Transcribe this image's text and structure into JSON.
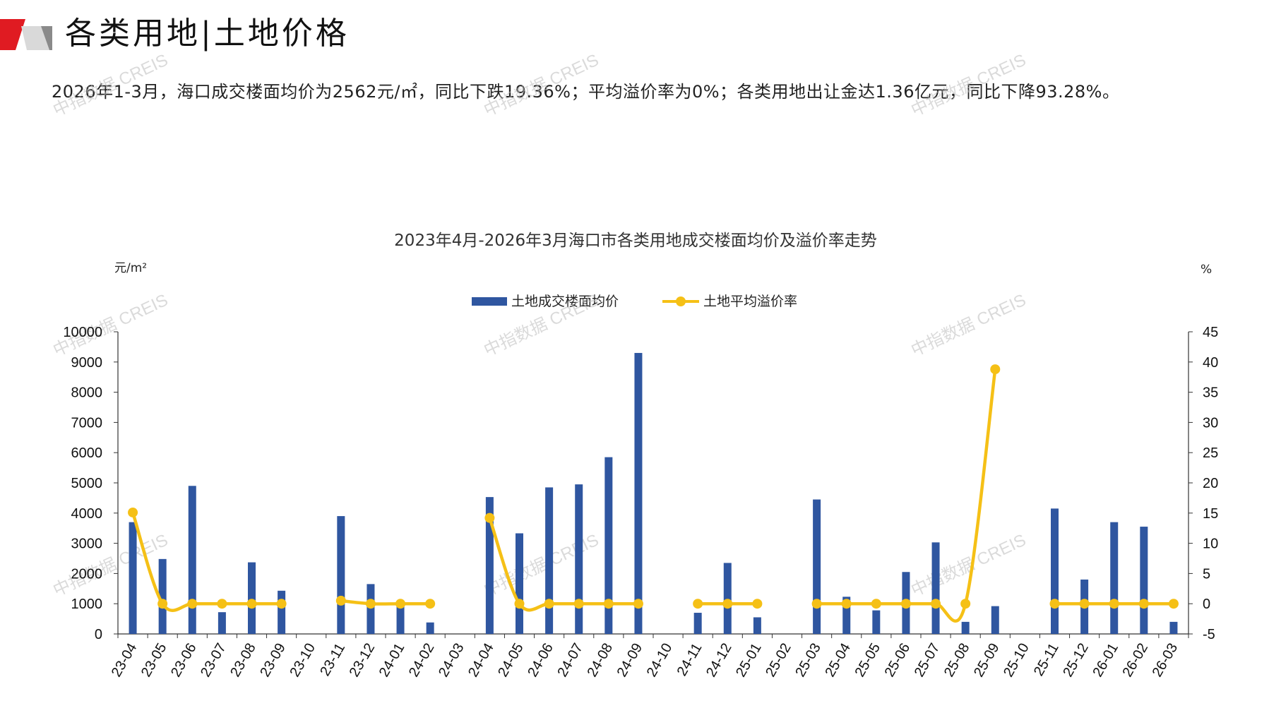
{
  "header": {
    "title": "各类用地|土地价格"
  },
  "summary": "2026年1-3月，海口成交楼面均价为2562元/㎡，同比下跌19.36%；平均溢价率为0%；各类用地出让金达1.36亿元，同比下降93.28%。",
  "watermark": "中指数据 CREIS",
  "colors": {
    "bar": "#2f56a0",
    "line": "#f5c016",
    "logo_red": "#e01b22",
    "logo_gray": "#8a8a8a"
  },
  "chart_data": {
    "type": "bar+line",
    "title": "2023年4月-2026年3月海口市各类用地成交楼面均价及溢价率走势",
    "y_left_unit": "元/m²",
    "y_right_unit": "%",
    "y_left_ticks": [
      "0",
      "1000",
      "2000",
      "3000",
      "4000",
      "5000",
      "6000",
      "7000",
      "8000",
      "9000",
      "10000"
    ],
    "y_right_ticks": [
      "-5",
      "0",
      "5",
      "10",
      "15",
      "20",
      "25",
      "30",
      "35",
      "40",
      "45"
    ],
    "ylim_left": [
      0,
      10000
    ],
    "ylim_right": [
      -5,
      45
    ],
    "legend_position": "top-center",
    "categories": [
      "23-04",
      "23-05",
      "23-06",
      "23-07",
      "23-08",
      "23-09",
      "23-10",
      "23-11",
      "23-12",
      "24-01",
      "24-02",
      "24-03",
      "24-04",
      "24-05",
      "24-06",
      "24-07",
      "24-08",
      "24-09",
      "24-10",
      "24-11",
      "24-12",
      "25-01",
      "25-02",
      "25-03",
      "25-04",
      "25-05",
      "25-06",
      "25-07",
      "25-08",
      "25-09",
      "25-10",
      "25-11",
      "25-12",
      "26-01",
      "26-02",
      "26-03"
    ],
    "series": [
      {
        "name": "土地成交楼面均价",
        "type": "bar",
        "axis": "left",
        "values": [
          3700,
          2480,
          4900,
          720,
          2370,
          1430,
          null,
          3900,
          1650,
          1000,
          380,
          null,
          4530,
          3330,
          4850,
          4950,
          5850,
          9300,
          null,
          700,
          2350,
          550,
          null,
          4450,
          1230,
          780,
          2050,
          3030,
          400,
          920,
          null,
          4150,
          1800,
          3700,
          3550,
          400
        ]
      },
      {
        "name": "土地平均溢价率",
        "type": "line",
        "axis": "right",
        "values": [
          15.1,
          0,
          0,
          0,
          0,
          0,
          null,
          0.5,
          0,
          0,
          0,
          null,
          14.2,
          0,
          0,
          0,
          0,
          0,
          null,
          0,
          0,
          0,
          null,
          0,
          0,
          0,
          0,
          0,
          0,
          38.8,
          null,
          0,
          0,
          0,
          0,
          0
        ]
      }
    ]
  }
}
